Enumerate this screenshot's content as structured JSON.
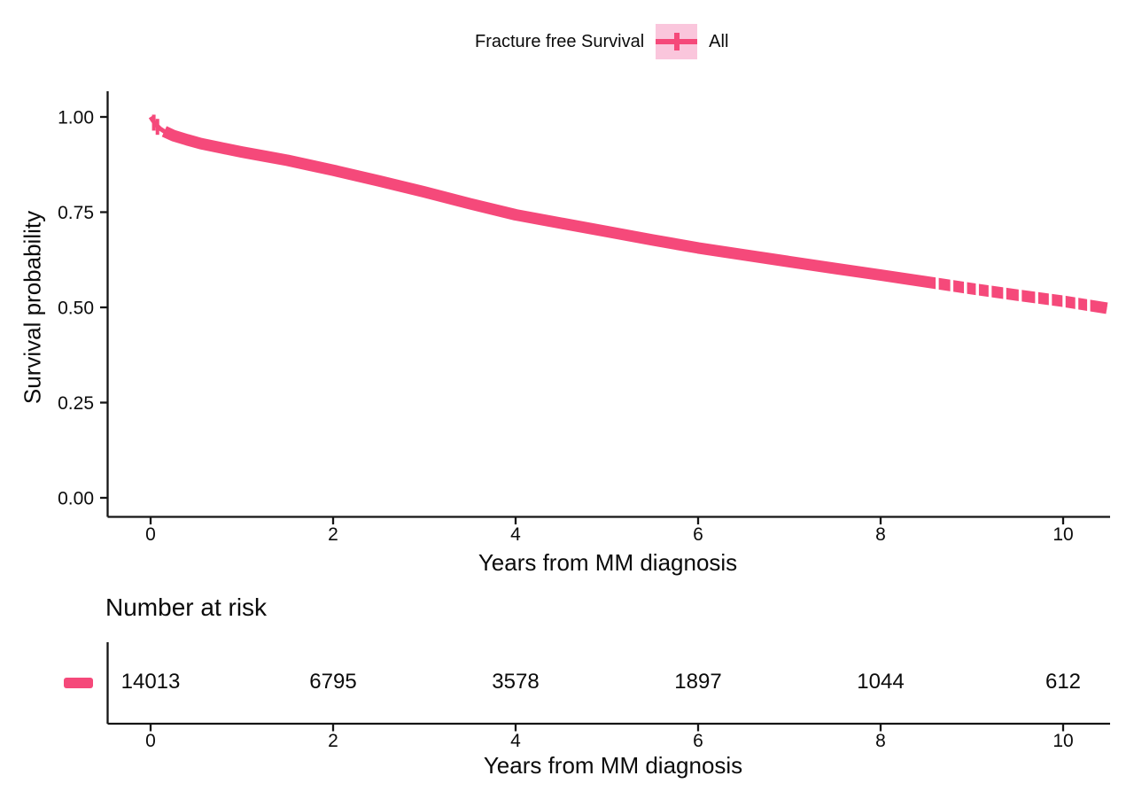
{
  "figure": {
    "background": "#ffffff",
    "text_color": "#0b0b0b",
    "axis_color": "#151515",
    "accent_color": "#F5497A",
    "legend_key_fill": "#FAC6DC"
  },
  "chart_data": {
    "type": "line",
    "subtype": "kaplan-meier-survival",
    "title": "Fracture free Survival",
    "legend": {
      "title": "Fracture free Survival",
      "entries": [
        "All"
      ],
      "position": "top"
    },
    "xlabel": "Years from MM diagnosis",
    "ylabel": "Survival probability",
    "xlim": [
      -0.47,
      10.55
    ],
    "ylim": [
      -0.05,
      1.05
    ],
    "xticks": [
      0,
      2,
      4,
      6,
      8,
      10
    ],
    "xticklabels": [
      "0",
      "2",
      "4",
      "6",
      "8",
      "10"
    ],
    "yticks": [
      0.0,
      0.25,
      0.5,
      0.75,
      1.0
    ],
    "yticklabels": [
      "0.00",
      "0.25",
      "0.50",
      "0.75",
      "1.00"
    ],
    "grid": false,
    "series": [
      {
        "name": "All",
        "color": "#F5497A",
        "censor_band": true,
        "points": [
          [
            0.0,
            1.0
          ],
          [
            0.02,
            0.992
          ],
          [
            0.05,
            0.982
          ],
          [
            0.1,
            0.97
          ],
          [
            0.15,
            0.962
          ],
          [
            0.25,
            0.951
          ],
          [
            0.4,
            0.94
          ],
          [
            0.55,
            0.93
          ],
          [
            0.75,
            0.92
          ],
          [
            1.0,
            0.908
          ],
          [
            1.25,
            0.897
          ],
          [
            1.5,
            0.886
          ],
          [
            1.75,
            0.873
          ],
          [
            2.0,
            0.86
          ],
          [
            2.5,
            0.832
          ],
          [
            3.0,
            0.803
          ],
          [
            3.5,
            0.772
          ],
          [
            4.0,
            0.743
          ],
          [
            4.5,
            0.721
          ],
          [
            5.0,
            0.699
          ],
          [
            5.5,
            0.677
          ],
          [
            6.0,
            0.656
          ],
          [
            6.5,
            0.638
          ],
          [
            7.0,
            0.62
          ],
          [
            7.5,
            0.602
          ],
          [
            8.0,
            0.585
          ],
          [
            8.5,
            0.567
          ],
          [
            9.0,
            0.549
          ],
          [
            9.5,
            0.532
          ],
          [
            10.0,
            0.516
          ],
          [
            10.48,
            0.498
          ]
        ],
        "censor_gap_years": [
          8.62,
          8.78,
          8.93,
          9.06,
          9.2,
          9.36,
          9.53,
          9.71,
          9.86,
          10.01,
          10.15,
          10.28
        ]
      }
    ],
    "number_at_risk": {
      "title": "Number at risk",
      "xlabel": "Years from MM diagnosis",
      "times": [
        0,
        2,
        4,
        6,
        8,
        10
      ],
      "groups": [
        {
          "name": "All",
          "color": "#F5497A",
          "counts": [
            14013,
            6795,
            3578,
            1897,
            1044,
            612
          ]
        }
      ]
    }
  }
}
